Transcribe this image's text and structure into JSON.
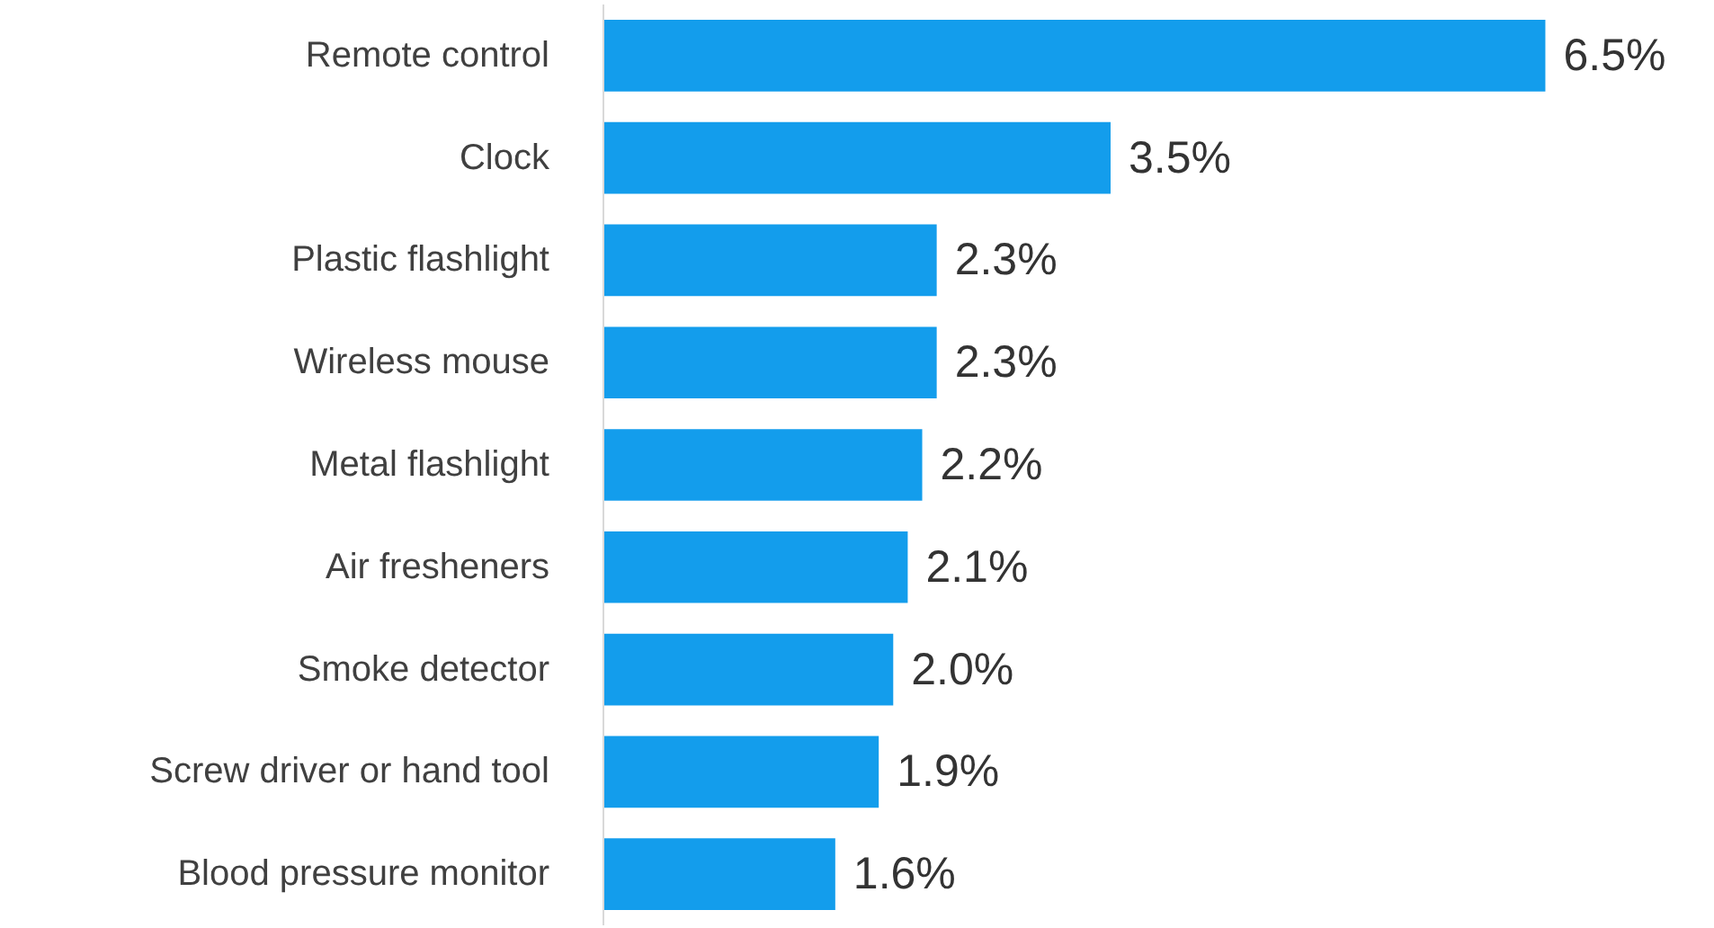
{
  "chart_data": {
    "type": "bar",
    "orientation": "horizontal",
    "grid": false,
    "color": "#139dec",
    "categories": [
      "Remote control",
      "Clock",
      "Plastic flashlight",
      "Wireless mouse",
      "Metal flashlight",
      "Air fresheners",
      "Smoke detector",
      "Screw driver or hand tool",
      "Blood pressure monitor"
    ],
    "values": [
      6.5,
      3.5,
      2.3,
      2.3,
      2.2,
      2.1,
      2.0,
      1.9,
      1.6
    ],
    "value_labels": [
      "6.5%",
      "3.5%",
      "2.3%",
      "2.3%",
      "2.2%",
      "2.1%",
      "2.0%",
      "1.9%",
      "1.6%"
    ]
  }
}
